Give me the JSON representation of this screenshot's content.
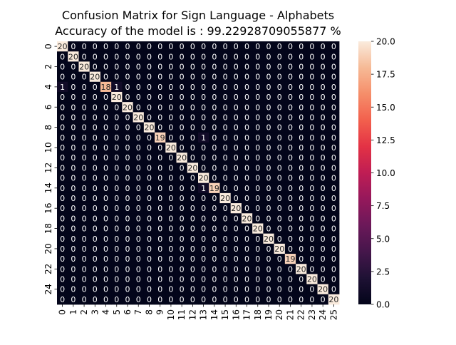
{
  "chart_data": {
    "type": "heatmap",
    "title": "Confusion Matrix for Sign Language - Alphabets",
    "subtitle": "Accuracy of the model is : 99.22928709055877 %",
    "xlabel": "",
    "ylabel": "",
    "x_tick_labels": [
      "0",
      "1",
      "2",
      "3",
      "4",
      "5",
      "6",
      "7",
      "8",
      "9",
      "10",
      "11",
      "12",
      "13",
      "14",
      "15",
      "16",
      "17",
      "18",
      "19",
      "20",
      "21",
      "22",
      "23",
      "24",
      "25"
    ],
    "y_tick_labels": [
      "0",
      "2",
      "4",
      "6",
      "8",
      "10",
      "12",
      "14",
      "16",
      "18",
      "20",
      "22",
      "24"
    ],
    "matrix_size": 26,
    "off_diagonal": [
      {
        "row": 4,
        "col": 0,
        "value": 1
      },
      {
        "row": 4,
        "col": 5,
        "value": 1
      },
      {
        "row": 9,
        "col": 13,
        "value": 1
      },
      {
        "row": 14,
        "col": 13,
        "value": 1
      }
    ],
    "diagonal": [
      20,
      20,
      20,
      20,
      18,
      20,
      20,
      20,
      20,
      19,
      20,
      20,
      20,
      20,
      19,
      20,
      20,
      20,
      20,
      20,
      20,
      19,
      20,
      20,
      20,
      20
    ],
    "vmin": 0,
    "vmax": 20,
    "colorbar_ticks": [
      "0.0",
      "2.5",
      "5.0",
      "7.5",
      "10.0",
      "12.5",
      "15.0",
      "17.5",
      "20.0"
    ],
    "colormap": "rocket",
    "grid": false,
    "legend": "colorbar-right"
  }
}
